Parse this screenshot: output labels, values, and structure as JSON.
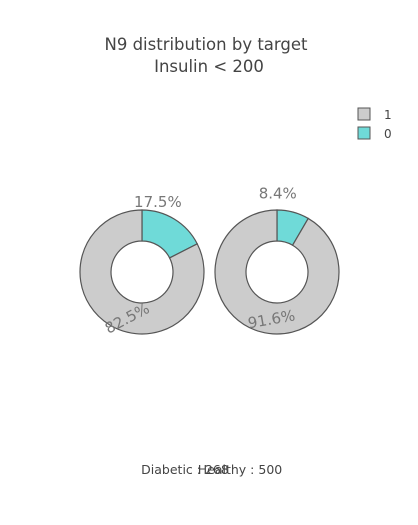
{
  "chart_data": {
    "type": "pie",
    "subtype": "donut",
    "title": [
      "N9 distribution by target",
      "Insulin < 200"
    ],
    "legend": {
      "placement": "top-right",
      "entries": [
        {
          "label": "1",
          "color": "#cccccc"
        },
        {
          "label": "0",
          "color": "#6fdad8"
        }
      ]
    },
    "pies": [
      {
        "name": "Diabetic : 268",
        "slices": [
          {
            "label": "0",
            "value": 17.5,
            "text": "17.5%",
            "color": "#6fdad8"
          },
          {
            "label": "1",
            "value": 82.5,
            "text": "82.5%",
            "color": "#cccccc"
          }
        ]
      },
      {
        "name": "Healthy : 500",
        "slices": [
          {
            "label": "0",
            "value": 8.4,
            "text": "8.4%",
            "color": "#6fdad8"
          },
          {
            "label": "1",
            "value": 91.6,
            "text": "91.6%",
            "color": "#cccccc"
          }
        ]
      }
    ]
  }
}
